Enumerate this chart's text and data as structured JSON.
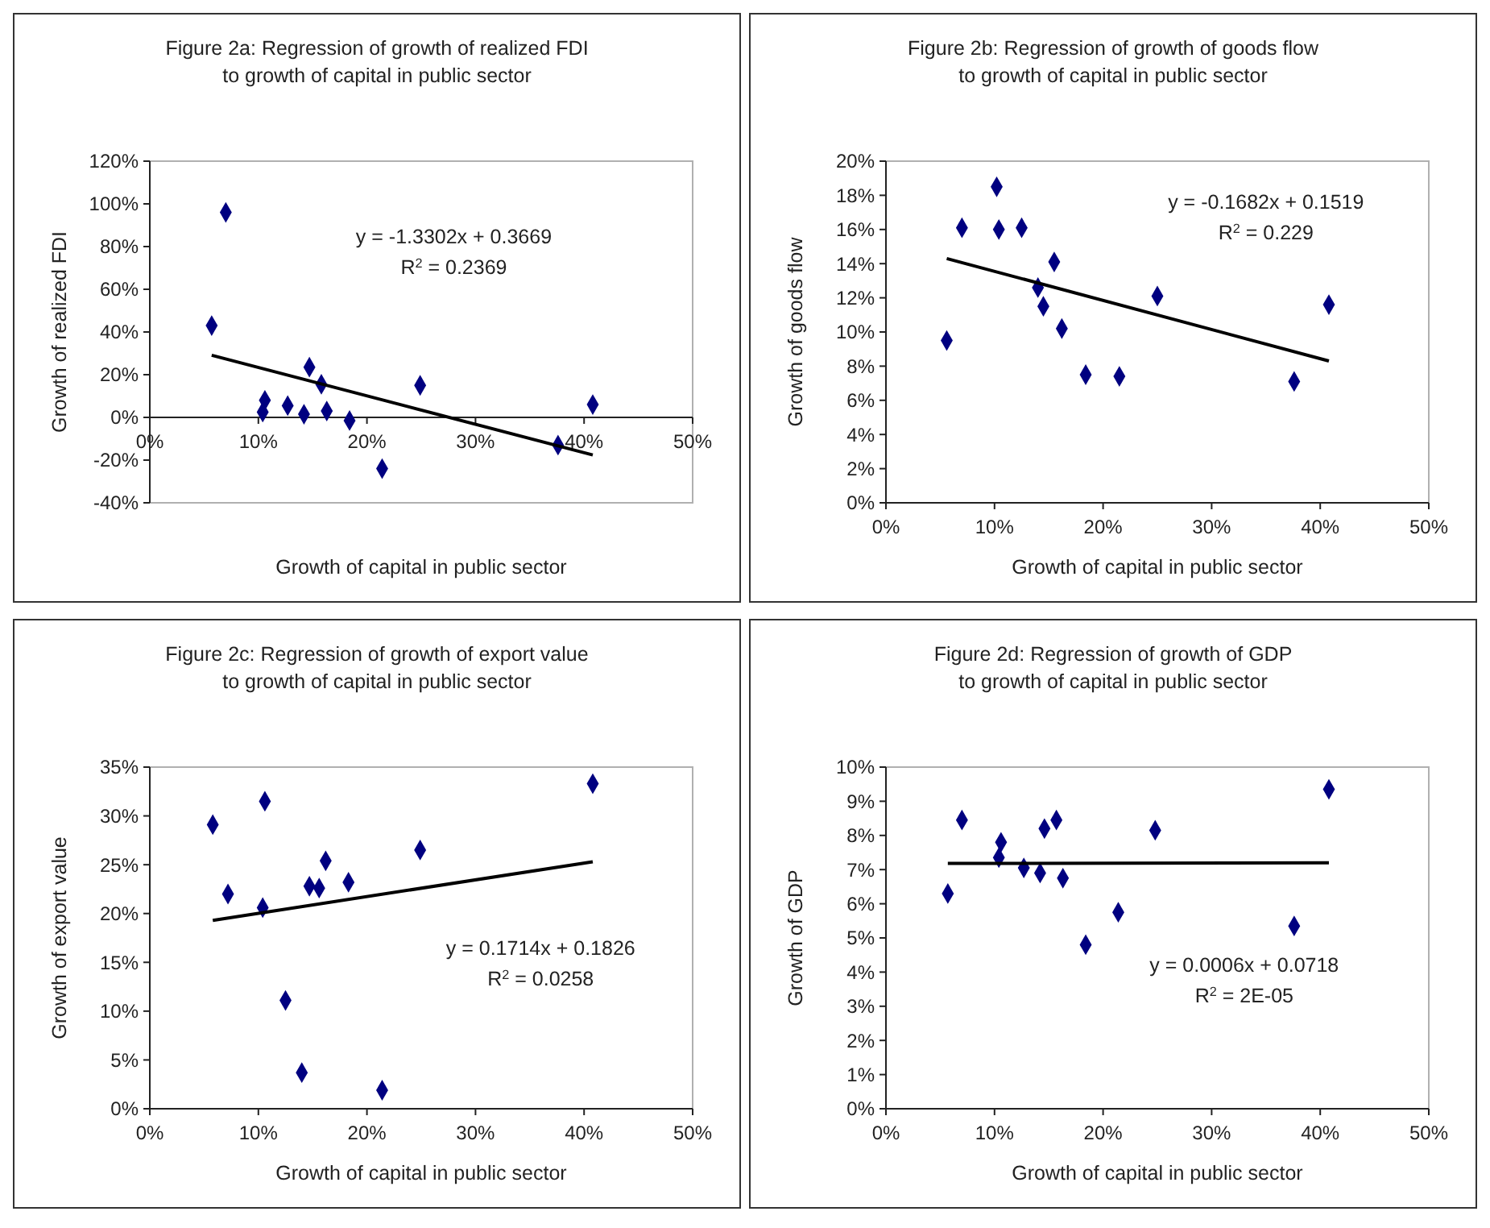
{
  "chart_data": [
    {
      "type": "scatter",
      "title": "Figure 2a: Regression of growth of realized FDI\nto growth of capital in public sector",
      "xlabel": "Growth of capital in public sector",
      "ylabel": "Growth of realized FDI",
      "xlim": [
        0,
        50
      ],
      "xticks": [
        {
          "value": 0,
          "label": "0%"
        },
        {
          "value": 10,
          "label": "10%"
        },
        {
          "value": 20,
          "label": "20%"
        },
        {
          "value": 30,
          "label": "30%"
        },
        {
          "value": 40,
          "label": "40%"
        },
        {
          "value": 50,
          "label": "50%"
        }
      ],
      "ylim": [
        -40,
        120
      ],
      "yticks": [
        {
          "value": -40,
          "label": "-40%"
        },
        {
          "value": -20,
          "label": "-20%"
        },
        {
          "value": 0,
          "label": "0%"
        },
        {
          "value": 20,
          "label": "20%"
        },
        {
          "value": 40,
          "label": "40%"
        },
        {
          "value": 60,
          "label": "60%"
        },
        {
          "value": 80,
          "label": "80%"
        },
        {
          "value": 100,
          "label": "100%"
        },
        {
          "value": 120,
          "label": "120%"
        }
      ],
      "grid": false,
      "marker": "diamond",
      "annotations": [
        "y = -1.3302x + 0.3669",
        "R$^{2}$ = 0.2369"
      ],
      "series": [
        {
          "color": "#000080",
          "x": [
            5.7,
            7,
            10.4,
            10.6,
            12.7,
            14.2,
            14.7,
            15.8,
            16.3,
            18.4,
            21.4,
            24.9,
            37.6,
            40.8
          ],
          "values": [
            43,
            96,
            2.5,
            8,
            5.5,
            1.5,
            23.5,
            15.5,
            3,
            -1.5,
            -24,
            15,
            -13,
            6
          ]
        },
        {
          "type": "line",
          "color": "#000000",
          "marker": "none",
          "line_style": "solid",
          "x": [
            5.7,
            40.8
          ],
          "values": [
            29.1,
            -17.6
          ]
        }
      ]
    },
    {
      "type": "scatter",
      "title": "Figure 2b: Regression of growth of goods flow\nto growth of capital in public sector",
      "xlabel": "Growth of capital in public sector",
      "ylabel": "Growth of goods flow",
      "xlim": [
        0,
        50
      ],
      "xticks": [
        {
          "value": 0,
          "label": "0%"
        },
        {
          "value": 10,
          "label": "10%"
        },
        {
          "value": 20,
          "label": "20%"
        },
        {
          "value": 30,
          "label": "30%"
        },
        {
          "value": 40,
          "label": "40%"
        },
        {
          "value": 50,
          "label": "50%"
        }
      ],
      "ylim": [
        0,
        20
      ],
      "yticks": [
        {
          "value": 0,
          "label": "0%"
        },
        {
          "value": 2,
          "label": "2%"
        },
        {
          "value": 4,
          "label": "4%"
        },
        {
          "value": 6,
          "label": "6%"
        },
        {
          "value": 8,
          "label": "8%"
        },
        {
          "value": 10,
          "label": "10%"
        },
        {
          "value": 12,
          "label": "12%"
        },
        {
          "value": 14,
          "label": "14%"
        },
        {
          "value": 16,
          "label": "16%"
        },
        {
          "value": 18,
          "label": "18%"
        },
        {
          "value": 20,
          "label": "20%"
        }
      ],
      "grid": false,
      "marker": "diamond",
      "annotations": [
        "y = -0.1682x + 0.1519",
        "R$^{2}$ = 0.229"
      ],
      "series": [
        {
          "color": "#000080",
          "x": [
            5.6,
            7,
            10.2,
            10.4,
            12.5,
            14,
            14.5,
            15.5,
            16.2,
            18.4,
            21.5,
            25,
            37.6,
            40.8
          ],
          "values": [
            9.5,
            16.1,
            18.5,
            16,
            16.1,
            12.6,
            11.5,
            14.1,
            10.2,
            7.5,
            7.4,
            12.1,
            7.1,
            11.6
          ]
        },
        {
          "type": "line",
          "color": "#000000",
          "marker": "none",
          "line_style": "solid",
          "x": [
            5.6,
            40.8
          ],
          "values": [
            14.3,
            8.3
          ]
        }
      ]
    },
    {
      "type": "scatter",
      "title": "Figure 2c: Regression of growth of export value\nto growth of capital in public sector",
      "xlabel": "Growth of capital in public sector",
      "ylabel": "Growth of export value",
      "xlim": [
        0,
        50
      ],
      "xticks": [
        {
          "value": 0,
          "label": "0%"
        },
        {
          "value": 10,
          "label": "10%"
        },
        {
          "value": 20,
          "label": "20%"
        },
        {
          "value": 30,
          "label": "30%"
        },
        {
          "value": 40,
          "label": "40%"
        },
        {
          "value": 50,
          "label": "50%"
        }
      ],
      "ylim": [
        0,
        35
      ],
      "yticks": [
        {
          "value": 0,
          "label": "0%"
        },
        {
          "value": 5,
          "label": "5%"
        },
        {
          "value": 10,
          "label": "10%"
        },
        {
          "value": 15,
          "label": "15%"
        },
        {
          "value": 20,
          "label": "20%"
        },
        {
          "value": 25,
          "label": "25%"
        },
        {
          "value": 30,
          "label": "30%"
        },
        {
          "value": 35,
          "label": "35%"
        }
      ],
      "grid": false,
      "marker": "diamond",
      "annotations": [
        "y = 0.1714x + 0.1826",
        "R$^{2}$ = 0.0258"
      ],
      "series": [
        {
          "color": "#000080",
          "x": [
            5.8,
            7.2,
            10.4,
            10.6,
            12.5,
            14,
            14.7,
            15.6,
            16.2,
            18.3,
            21.4,
            24.9,
            40.8
          ],
          "values": [
            29.1,
            22,
            20.6,
            31.5,
            11.1,
            3.7,
            22.8,
            22.6,
            25.4,
            23.2,
            1.9,
            26.5,
            33.3
          ]
        },
        {
          "type": "line",
          "color": "#000000",
          "marker": "none",
          "line_style": "solid",
          "x": [
            5.8,
            40.8
          ],
          "values": [
            19.3,
            25.3
          ]
        }
      ]
    },
    {
      "type": "scatter",
      "title": "Figure 2d: Regression of growth of GDP\nto growth of capital in public sector",
      "xlabel": "Growth of capital in public sector",
      "ylabel": "Growth of GDP",
      "xlim": [
        0,
        50
      ],
      "xticks": [
        {
          "value": 0,
          "label": "0%"
        },
        {
          "value": 10,
          "label": "10%"
        },
        {
          "value": 20,
          "label": "20%"
        },
        {
          "value": 30,
          "label": "30%"
        },
        {
          "value": 40,
          "label": "40%"
        },
        {
          "value": 50,
          "label": "50%"
        }
      ],
      "ylim": [
        0,
        10
      ],
      "yticks": [
        {
          "value": 0,
          "label": "0%"
        },
        {
          "value": 1,
          "label": "1%"
        },
        {
          "value": 2,
          "label": "2%"
        },
        {
          "value": 3,
          "label": "3%"
        },
        {
          "value": 4,
          "label": "4%"
        },
        {
          "value": 5,
          "label": "5%"
        },
        {
          "value": 6,
          "label": "6%"
        },
        {
          "value": 7,
          "label": "7%"
        },
        {
          "value": 8,
          "label": "8%"
        },
        {
          "value": 9,
          "label": "9%"
        },
        {
          "value": 10,
          "label": "10%"
        }
      ],
      "grid": false,
      "marker": "diamond",
      "annotations": [
        "y = 0.0006x + 0.0718",
        "R$^{2}$ = 2E-05"
      ],
      "series": [
        {
          "color": "#000080",
          "x": [
            5.7,
            7,
            10.4,
            10.6,
            12.7,
            14.2,
            14.6,
            15.7,
            16.3,
            18.4,
            21.4,
            24.8,
            37.6,
            40.8
          ],
          "values": [
            6.3,
            8.45,
            7.35,
            7.8,
            7.05,
            6.9,
            8.2,
            8.45,
            6.75,
            4.8,
            5.75,
            8.15,
            5.35,
            9.35
          ]
        },
        {
          "type": "line",
          "color": "#000000",
          "marker": "none",
          "line_style": "solid",
          "x": [
            5.7,
            40.8
          ],
          "values": [
            7.18,
            7.2
          ]
        }
      ]
    }
  ]
}
